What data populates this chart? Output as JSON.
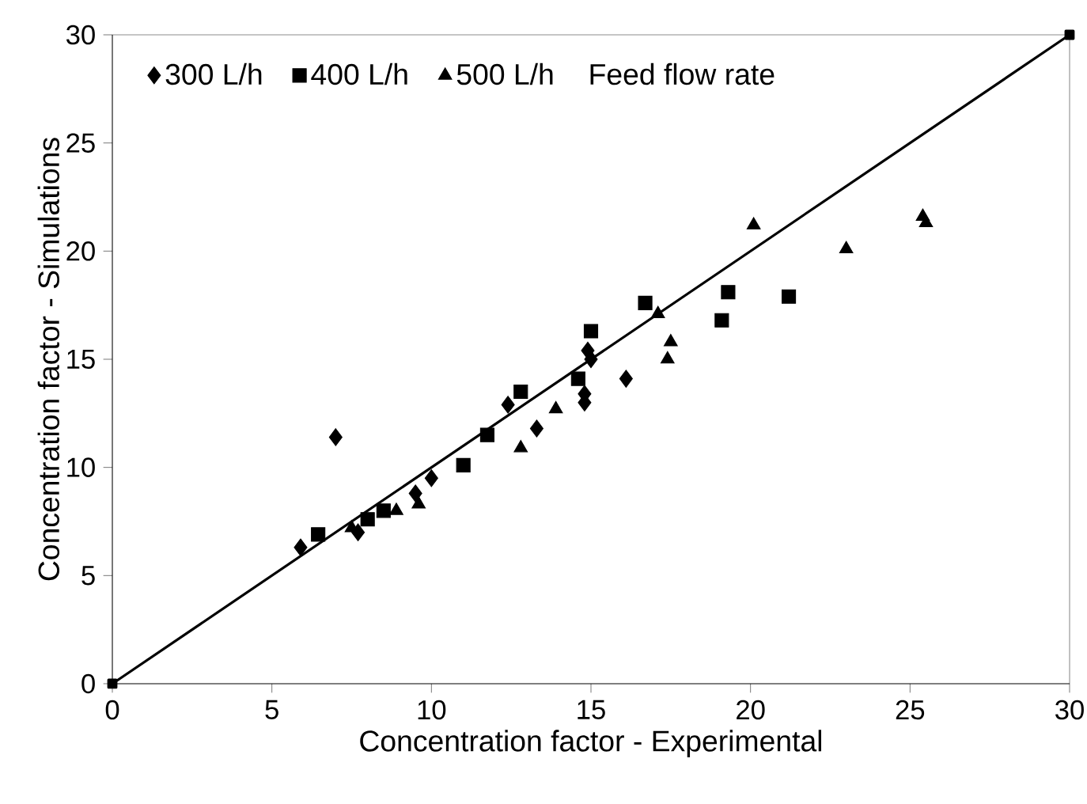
{
  "chart_data": {
    "type": "scatter",
    "xlabel": "Concentration factor - Experimental",
    "ylabel": "Concentration factor - Simulations",
    "legend_title": "Feed flow rate",
    "legend": "top left",
    "xlim": [
      0,
      30
    ],
    "ylim": [
      0,
      30
    ],
    "xticks": [
      0,
      5,
      10,
      15,
      20,
      25,
      30
    ],
    "yticks": [
      0,
      5,
      10,
      15,
      20,
      25,
      30
    ],
    "series": [
      {
        "name": "300 L/h",
        "color": "#000000",
        "marker": "diamond",
        "x": [
          5.9,
          7.0,
          7.7,
          7.8,
          9.5,
          10.0,
          12.4,
          13.3,
          14.8,
          14.8,
          14.9,
          15.0,
          16.1
        ],
        "values": [
          6.3,
          11.4,
          7.0,
          null,
          8.8,
          9.5,
          12.9,
          11.8,
          13.0,
          13.4,
          15.4,
          15.0,
          14.1
        ]
      },
      {
        "name": "400 L/h",
        "color": "#000000",
        "marker": "square",
        "x": [
          6.45,
          8.0,
          8.5,
          11.0,
          11.75,
          12.8,
          14.6,
          15.0,
          16.7,
          19.1,
          19.3,
          21.2
        ],
        "values": [
          6.9,
          7.6,
          8.0,
          10.1,
          11.5,
          13.5,
          14.1,
          16.3,
          17.6,
          16.8,
          18.1,
          17.9
        ]
      },
      {
        "name": "500 L/h",
        "color": "#000000",
        "marker": "triangle",
        "x": [
          7.5,
          8.9,
          9.6,
          12.8,
          13.9,
          17.1,
          17.4,
          17.5,
          20.1,
          23.0,
          25.4,
          25.5
        ],
        "values": [
          7.2,
          8.0,
          8.3,
          10.9,
          12.7,
          17.1,
          15.0,
          15.8,
          21.2,
          20.1,
          21.6,
          21.3
        ]
      },
      {
        "type": "line",
        "color": "#000000",
        "marker": "square",
        "x": [
          0,
          30
        ],
        "values": [
          0,
          30
        ]
      }
    ]
  }
}
